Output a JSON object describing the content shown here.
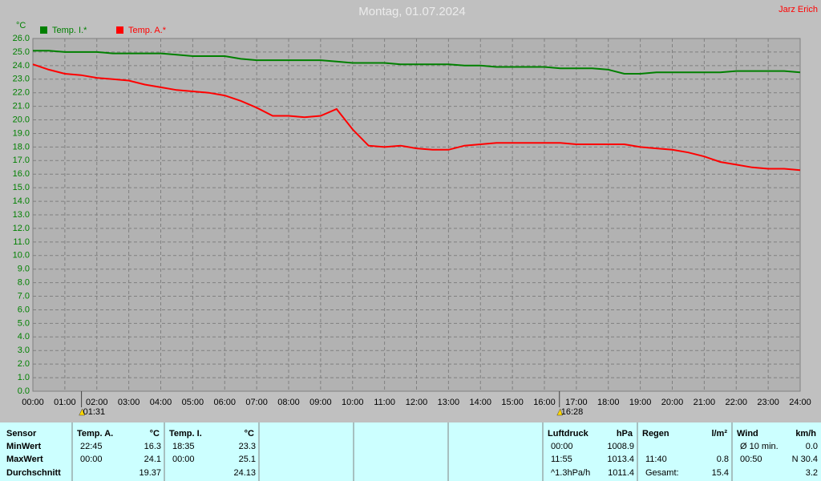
{
  "chart_data": {
    "type": "line",
    "title": "Montag, 01.07.2024",
    "author": "Jarz Erich",
    "y_unit": "°C",
    "x": [
      0,
      0.5,
      1,
      1.5,
      2,
      2.5,
      3,
      3.5,
      4,
      4.5,
      5,
      5.5,
      6,
      6.5,
      7,
      7.5,
      8,
      8.5,
      9,
      9.5,
      10,
      10.5,
      11,
      11.5,
      12,
      12.5,
      13,
      13.5,
      14,
      14.5,
      15,
      15.5,
      16,
      16.5,
      17,
      17.5,
      18,
      18.5,
      19,
      19.5,
      20,
      20.5,
      21,
      21.5,
      22,
      22.5,
      23,
      23.5,
      24
    ],
    "series": [
      {
        "name": "Temp. I.*",
        "color": "#008000",
        "values": [
          25.1,
          25.1,
          25.0,
          25.0,
          25.0,
          24.9,
          24.9,
          24.9,
          24.9,
          24.8,
          24.7,
          24.7,
          24.7,
          24.5,
          24.4,
          24.4,
          24.4,
          24.4,
          24.4,
          24.3,
          24.2,
          24.2,
          24.2,
          24.1,
          24.1,
          24.1,
          24.1,
          24.0,
          24.0,
          23.9,
          23.9,
          23.9,
          23.9,
          23.8,
          23.8,
          23.8,
          23.7,
          23.4,
          23.4,
          23.5,
          23.5,
          23.5,
          23.5,
          23.5,
          23.6,
          23.6,
          23.6,
          23.6,
          23.5
        ]
      },
      {
        "name": "Temp. A.*",
        "color": "#ff0000",
        "values": [
          24.1,
          23.7,
          23.4,
          23.3,
          23.1,
          23.0,
          22.9,
          22.6,
          22.4,
          22.2,
          22.1,
          22.0,
          21.8,
          21.4,
          20.9,
          20.3,
          20.3,
          20.2,
          20.3,
          20.8,
          19.3,
          18.1,
          18.0,
          18.1,
          17.9,
          17.8,
          17.8,
          18.1,
          18.2,
          18.3,
          18.3,
          18.3,
          18.3,
          18.3,
          18.2,
          18.2,
          18.2,
          18.2,
          18.0,
          17.9,
          17.8,
          17.6,
          17.3,
          16.9,
          16.7,
          16.5,
          16.4,
          16.4,
          16.3
        ]
      }
    ],
    "xlim": [
      0,
      24
    ],
    "xticks": [
      {
        "value": 0,
        "label": "00:00"
      },
      {
        "value": 1,
        "label": "01:00"
      },
      {
        "value": 2,
        "label": "02:00"
      },
      {
        "value": 3,
        "label": "03:00"
      },
      {
        "value": 4,
        "label": "04:00"
      },
      {
        "value": 5,
        "label": "05:00"
      },
      {
        "value": 6,
        "label": "06:00"
      },
      {
        "value": 7,
        "label": "07:00"
      },
      {
        "value": 8,
        "label": "08:00"
      },
      {
        "value": 9,
        "label": "09:00"
      },
      {
        "value": 10,
        "label": "10:00"
      },
      {
        "value": 11,
        "label": "11:00"
      },
      {
        "value": 12,
        "label": "12:00"
      },
      {
        "value": 13,
        "label": "13:00"
      },
      {
        "value": 14,
        "label": "14:00"
      },
      {
        "value": 15,
        "label": "15:00"
      },
      {
        "value": 16,
        "label": "16:00"
      },
      {
        "value": 17,
        "label": "17:00"
      },
      {
        "value": 18,
        "label": "18:00"
      },
      {
        "value": 19,
        "label": "19:00"
      },
      {
        "value": 20,
        "label": "20:00"
      },
      {
        "value": 21,
        "label": "21:00"
      },
      {
        "value": 22,
        "label": "22:00"
      },
      {
        "value": 23,
        "label": "23:00"
      },
      {
        "value": 24,
        "label": "24:00"
      }
    ],
    "ylim": [
      0,
      26
    ],
    "yticks": [
      {
        "value": 0,
        "label": "0.0"
      },
      {
        "value": 1,
        "label": "1.0"
      },
      {
        "value": 2,
        "label": "2.0"
      },
      {
        "value": 3,
        "label": "3.0"
      },
      {
        "value": 4,
        "label": "4.0"
      },
      {
        "value": 5,
        "label": "5.0"
      },
      {
        "value": 6,
        "label": "6.0"
      },
      {
        "value": 7,
        "label": "7.0"
      },
      {
        "value": 8,
        "label": "8.0"
      },
      {
        "value": 9,
        "label": "9.0"
      },
      {
        "value": 10,
        "label": "10.0"
      },
      {
        "value": 11,
        "label": "11.0"
      },
      {
        "value": 12,
        "label": "12.0"
      },
      {
        "value": 13,
        "label": "13.0"
      },
      {
        "value": 14,
        "label": "14.0"
      },
      {
        "value": 15,
        "label": "15.0"
      },
      {
        "value": 16,
        "label": "16.0"
      },
      {
        "value": 17,
        "label": "17.0"
      },
      {
        "value": 18,
        "label": "18.0"
      },
      {
        "value": 19,
        "label": "19.0"
      },
      {
        "value": 20,
        "label": "20.0"
      },
      {
        "value": 21,
        "label": "21.0"
      },
      {
        "value": 22,
        "label": "22.0"
      },
      {
        "value": 23,
        "label": "23.0"
      },
      {
        "value": 24,
        "label": "24.0"
      },
      {
        "value": 25,
        "label": "25.0"
      },
      {
        "value": 26,
        "label": "26.0"
      }
    ],
    "grid": true,
    "annotations": [
      {
        "text": "01:31",
        "x": 1.52
      },
      {
        "text": "16:28",
        "x": 16.47
      }
    ]
  },
  "table": {
    "label_column": [
      "Sensor",
      "MinWert",
      "MaxWert",
      "Durchschnitt"
    ],
    "sections": [
      {
        "name": "Temp. A.",
        "unit": "°C",
        "rows": [
          {
            "time": "22:45",
            "value": "16.3"
          },
          {
            "time": "00:00",
            "value": "24.1"
          },
          {
            "value": "19.37"
          }
        ]
      },
      {
        "name": "Temp. I.",
        "unit": "°C",
        "rows": [
          {
            "time": "18:35",
            "value": "23.3"
          },
          {
            "time": "00:00",
            "value": "25.1"
          },
          {
            "value": "24.13"
          }
        ]
      },
      {
        "name": "Luftdruck",
        "unit": "hPa",
        "rows": [
          {
            "time": "00:00",
            "value": "1008.9"
          },
          {
            "time": "11:55",
            "value": "1013.4"
          },
          {
            "time": "^1.3hPa/h",
            "value": "1011.4"
          }
        ]
      },
      {
        "name": "Regen",
        "unit": "l/m²",
        "rows": [
          {},
          {
            "time": "11:40",
            "value": "0.8"
          },
          {
            "time": "Gesamt:",
            "value": "15.4"
          }
        ]
      },
      {
        "name": "Wind",
        "unit": "km/h",
        "rows": [
          {
            "time": "Ø 10 min.",
            "value": "0.0"
          },
          {
            "time": "00:50",
            "value": "N 30.4"
          },
          {
            "value": "3.2"
          }
        ]
      }
    ]
  }
}
